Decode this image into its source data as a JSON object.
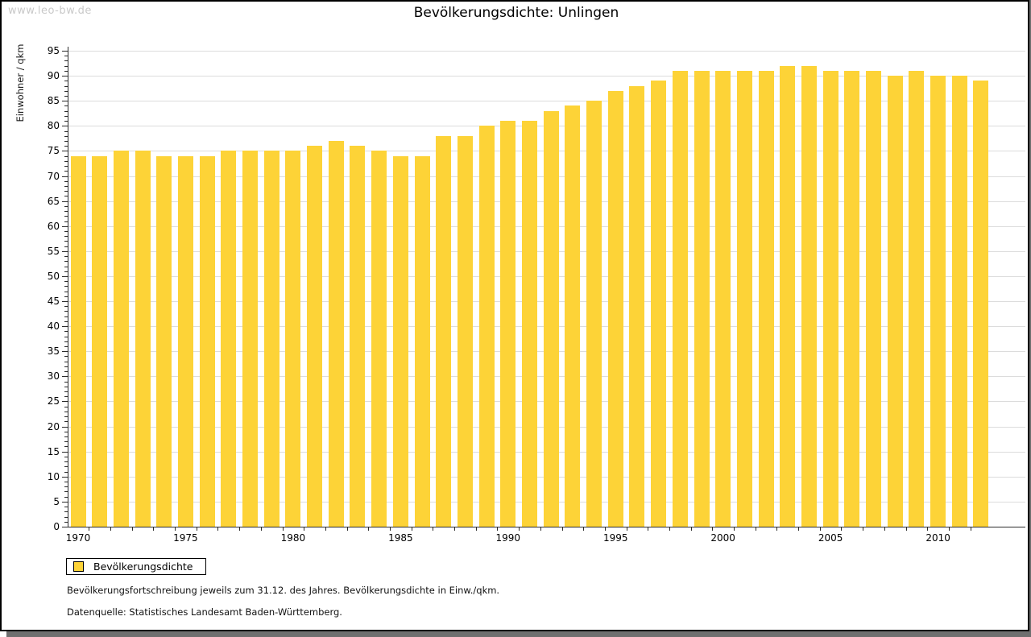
{
  "watermark": "www.leo-bw.de",
  "title": "Bevölkerungsdichte: Unlingen",
  "legend": {
    "label": "Bevölkerungsdichte"
  },
  "footnotes": {
    "line1": "Bevölkerungsfortschreibung jeweils zum 31.12. des Jahres. Bevölkerungsdichte in Einw./qkm.",
    "line2": "Datenquelle: Statistisches Landesamt Baden-Württemberg."
  },
  "colors": {
    "bar": "#FDD337",
    "grid": "#DCDCDC",
    "axis": "#2B2B2B",
    "watermark": "#C9C9C9",
    "shadow": "#6F6F6F"
  },
  "chart_data": {
    "type": "bar",
    "title": "Bevölkerungsdichte: Unlingen",
    "ylabel": "Einwohner / qkm",
    "xlabel": "",
    "ylim": [
      0,
      95
    ],
    "ytick_step": 5,
    "grid": true,
    "legend_position": "bottom-left",
    "legend_entries": [
      "Bevölkerungsdichte"
    ],
    "xtick_labels": [
      "1970",
      "1975",
      "1980",
      "1985",
      "1990",
      "1995",
      "2000",
      "2005",
      "2010"
    ],
    "categories": [
      1970,
      1971,
      1972,
      1973,
      1974,
      1975,
      1976,
      1977,
      1978,
      1979,
      1980,
      1981,
      1982,
      1983,
      1984,
      1985,
      1986,
      1987,
      1988,
      1989,
      1990,
      1991,
      1992,
      1993,
      1994,
      1995,
      1996,
      1997,
      1998,
      1999,
      2000,
      2001,
      2002,
      2003,
      2004,
      2005,
      2006,
      2007,
      2008,
      2009,
      2010,
      2011,
      2012
    ],
    "series": [
      {
        "name": "Bevölkerungsdichte",
        "values": [
          74,
          74,
          75,
          75,
          74,
          74,
          74,
          75,
          75,
          75,
          75,
          76,
          77,
          76,
          75,
          74,
          74,
          78,
          78,
          80,
          81,
          81,
          83,
          84,
          85,
          87,
          88,
          89,
          91,
          91,
          91,
          91,
          91,
          92,
          92,
          91,
          91,
          91,
          90,
          91,
          90,
          90,
          89
        ]
      }
    ]
  }
}
